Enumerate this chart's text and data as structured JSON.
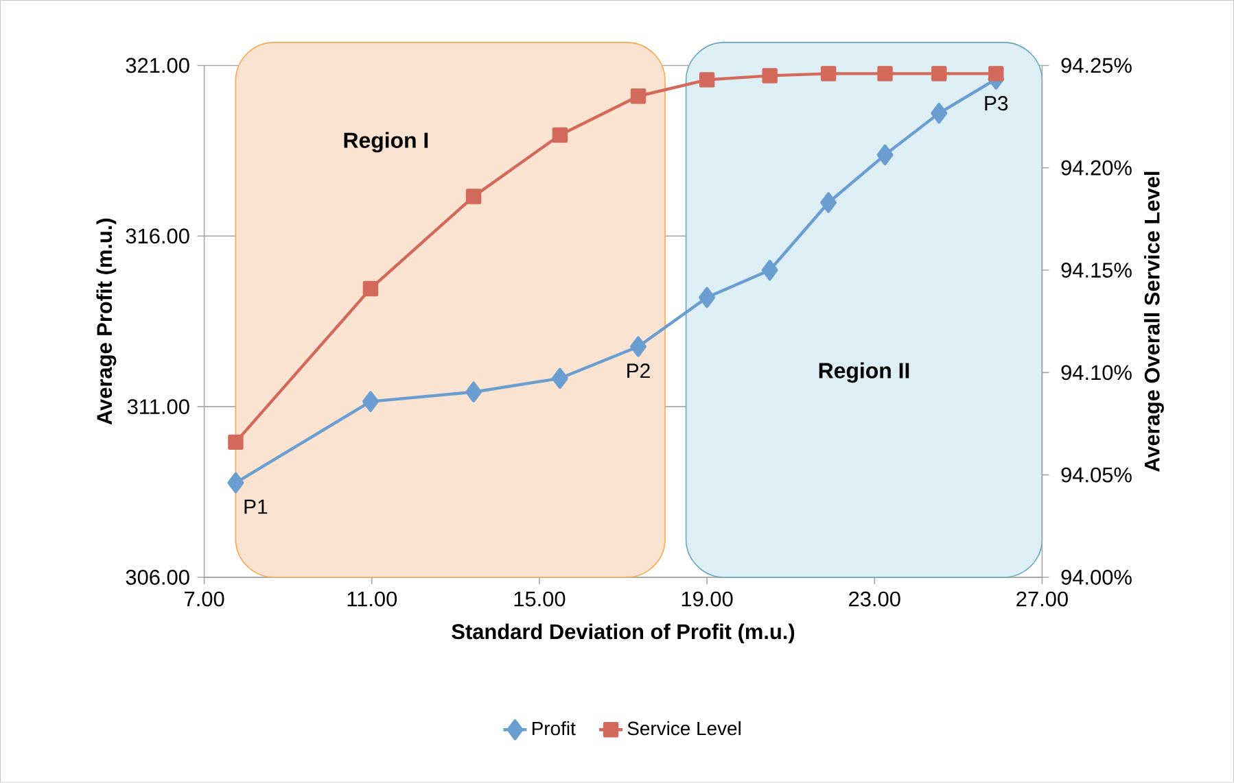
{
  "chart_data": {
    "type": "line",
    "xlabel": "Standard Deviation of Profit (m.u.)",
    "ylabel": "Average Profit (m.u.)",
    "y2label": "Average Overall Service Level",
    "xlim": [
      7,
      27
    ],
    "xticks": [
      {
        "value": 7,
        "label": "7.00"
      },
      {
        "value": 11,
        "label": "11.00"
      },
      {
        "value": 15,
        "label": "15.00"
      },
      {
        "value": 19,
        "label": "19.00"
      },
      {
        "value": 23,
        "label": "23.00"
      },
      {
        "value": 27,
        "label": "27.00"
      }
    ],
    "ylim": [
      306,
      321
    ],
    "yticks": [
      {
        "value": 306,
        "label": "306.00"
      },
      {
        "value": 311,
        "label": "311.00"
      },
      {
        "value": 316,
        "label": "316.00"
      },
      {
        "value": 321,
        "label": "321.00"
      }
    ],
    "y2lim": [
      94.0,
      94.25
    ],
    "y2ticks": [
      {
        "value": 94.0,
        "label": "94.00%"
      },
      {
        "value": 94.05,
        "label": "94.05%"
      },
      {
        "value": 94.1,
        "label": "94.10%"
      },
      {
        "value": 94.15,
        "label": "94.15%"
      },
      {
        "value": 94.2,
        "label": "94.20%"
      },
      {
        "value": 94.25,
        "label": "94.25%"
      }
    ],
    "grid": "y",
    "legend": "bottom",
    "line_style": "solid",
    "x": [
      7.75,
      10.97,
      13.43,
      15.49,
      17.36,
      19.0,
      20.5,
      21.9,
      23.25,
      24.54,
      25.9
    ],
    "series": [
      {
        "name": "Profit",
        "color": "#6a9ed0",
        "marker": "diamond",
        "values": [
          308.77,
          311.15,
          311.43,
          311.83,
          312.76,
          314.2,
          315.0,
          316.98,
          318.38,
          319.6,
          320.6
        ]
      },
      {
        "name": "Service Level",
        "color": "#d2695a",
        "marker": "square",
        "axis": "y2",
        "values": [
          94.066,
          94.141,
          94.186,
          94.216,
          94.235,
          94.243,
          94.245,
          94.246,
          94.246,
          94.246,
          94.246
        ]
      }
    ],
    "bands": [
      {
        "axis": "x",
        "from": 7.75,
        "to": 18.0,
        "label": "Region I",
        "color": "#fbe3d2"
      },
      {
        "axis": "x",
        "from": 18.5,
        "to": 27.0,
        "label": "Region II",
        "color": "#ddeef4"
      }
    ],
    "annotations": [
      {
        "text": "P1",
        "x": 7.75,
        "y": 308.77
      },
      {
        "text": "P2",
        "x": 17.36,
        "y": 312.76
      },
      {
        "text": "P3",
        "x": 25.9,
        "y": 320.6
      }
    ]
  }
}
